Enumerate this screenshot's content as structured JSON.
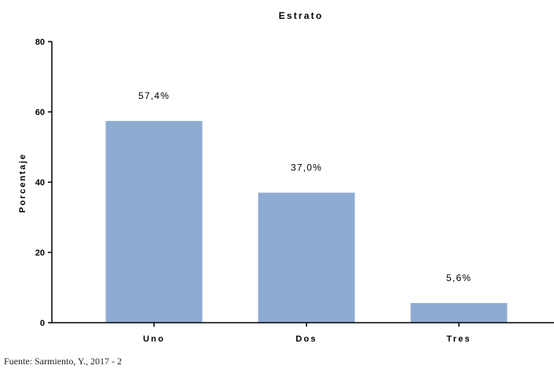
{
  "chart_data": {
    "type": "bar",
    "title": "Estrato",
    "ylabel": "Porcentaje",
    "xlabel": "",
    "categories": [
      "Uno",
      "Dos",
      "Tres"
    ],
    "values": [
      57.4,
      37.0,
      5.6
    ],
    "data_labels": [
      "57,4%",
      "37,0%",
      "5,6%"
    ],
    "ylim": [
      0,
      80
    ],
    "yticks": [
      0,
      20,
      40,
      60,
      80
    ],
    "grid": false,
    "bar_color": "#8eabd2"
  },
  "footer": {
    "source": "Fuente: Sarmiento, Y., 2017 - 2"
  }
}
